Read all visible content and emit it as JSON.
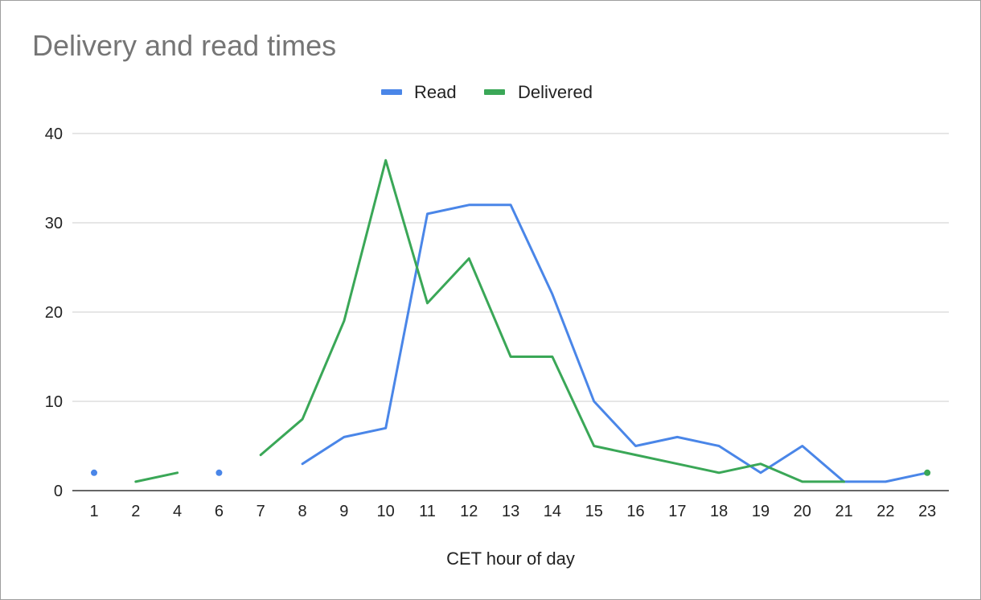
{
  "chart_data": {
    "type": "line",
    "title": "Delivery and read times",
    "xlabel": "CET hour of day",
    "ylabel": "",
    "categories": [
      "1",
      "2",
      "4",
      "6",
      "7",
      "8",
      "9",
      "10",
      "11",
      "12",
      "13",
      "14",
      "15",
      "16",
      "17",
      "18",
      "19",
      "20",
      "21",
      "22",
      "23"
    ],
    "yticks": [
      "0",
      "10",
      "20",
      "30",
      "40"
    ],
    "ylim": [
      0,
      40
    ],
    "grid": true,
    "legend_position": "top-center",
    "series": [
      {
        "name": "Read",
        "color": "#4a86e8",
        "values": [
          2,
          null,
          null,
          2,
          null,
          3,
          6,
          7,
          31,
          32,
          32,
          22,
          10,
          5,
          6,
          5,
          2,
          5,
          1,
          1,
          2
        ]
      },
      {
        "name": "Delivered",
        "color": "#3aa757",
        "values": [
          null,
          1,
          2,
          null,
          4,
          8,
          19,
          37,
          21,
          26,
          15,
          15,
          5,
          4,
          3,
          2,
          3,
          1,
          1,
          null,
          2
        ]
      }
    ]
  }
}
